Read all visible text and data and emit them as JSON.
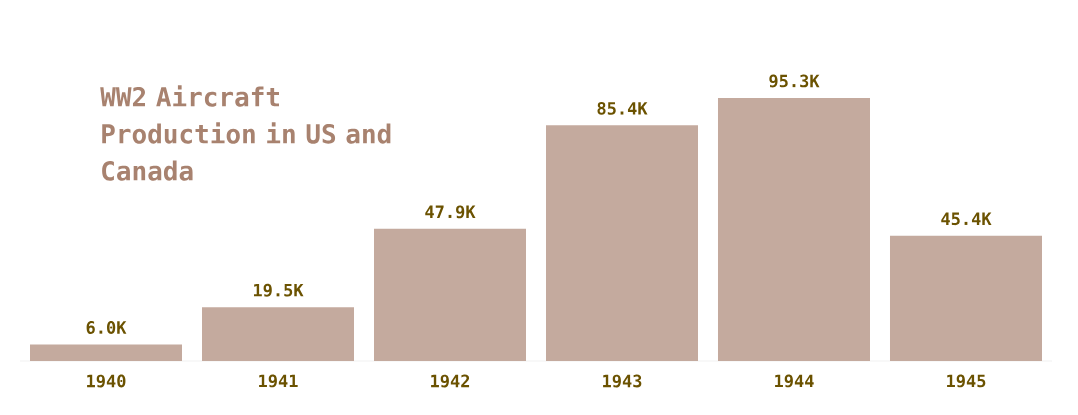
{
  "chart_data": {
    "type": "bar",
    "title": "WW2 Aircraft Production in US and Canada",
    "categories": [
      "1940",
      "1941",
      "1942",
      "1943",
      "1944",
      "1945"
    ],
    "values": [
      6.0,
      19.5,
      47.9,
      85.4,
      95.3,
      45.4
    ],
    "value_labels": [
      "6.0K",
      "19.5K",
      "47.9K",
      "85.4K",
      "95.3K",
      "45.4K"
    ],
    "color": "#c4aa9e"
  }
}
